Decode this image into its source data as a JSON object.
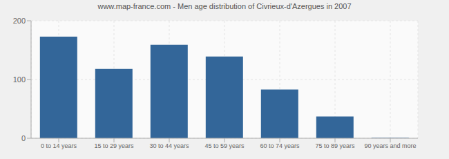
{
  "chart_data": {
    "type": "bar",
    "title": "www.map-france.com - Men age distribution of Civrieux-d'Azergues in 2007",
    "categories": [
      "0 to 14 years",
      "15 to 29 years",
      "30 to 44 years",
      "45 to 59 years",
      "60 to 74 years",
      "75 to 89 years",
      "90 years and more"
    ],
    "values": [
      173,
      118,
      159,
      139,
      83,
      37,
      1
    ],
    "color": "#336699",
    "ylim": [
      0,
      200
    ],
    "yticks": [
      0,
      100,
      200
    ],
    "grid": true
  }
}
